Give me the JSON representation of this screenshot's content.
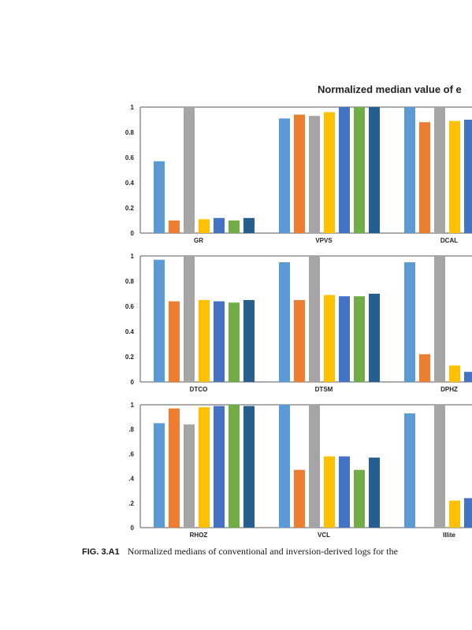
{
  "figure": {
    "title": "Normalized median value of e",
    "caption_number": "FIG. 3.A1",
    "caption_text": "Normalized medians of conventional and inversion-derived logs for the"
  },
  "colors": [
    "#5b9bd5",
    "#ed7d31",
    "#a5a5a5",
    "#ffc000",
    "#4472c4",
    "#70ad47",
    "#255e91"
  ],
  "chart_data": [
    {
      "type": "bar",
      "ylim": [
        0,
        1
      ],
      "yticks": [
        "0",
        "0.2",
        "0.4",
        "0.6",
        "0.8",
        "1"
      ],
      "categories": [
        "GR",
        "VPVS",
        "DCAL"
      ],
      "groups": [
        [
          0.57,
          0.1,
          1.0,
          0.11,
          0.12,
          0.1,
          0.12
        ],
        [
          0.91,
          0.94,
          0.93,
          0.96,
          1.0,
          1.0,
          1.0
        ],
        [
          1.0,
          0.88,
          1.0,
          0.89,
          0.9,
          null,
          null
        ]
      ]
    },
    {
      "type": "bar",
      "ylim": [
        0,
        1
      ],
      "yticks": [
        "0",
        "0.2",
        "0.4",
        "0.6",
        "0.8",
        "1"
      ],
      "categories": [
        "DTCO",
        "DTSM",
        "DPHZ"
      ],
      "groups": [
        [
          0.97,
          0.64,
          1.0,
          0.65,
          0.64,
          0.63,
          0.65
        ],
        [
          0.95,
          0.65,
          1.0,
          0.69,
          0.68,
          0.68,
          0.7
        ],
        [
          0.95,
          0.22,
          1.0,
          0.13,
          0.08,
          null,
          null
        ]
      ]
    },
    {
      "type": "bar",
      "ylim": [
        0,
        1
      ],
      "yticks": [
        "0",
        ".2",
        ".4",
        ".6",
        ".8",
        "1"
      ],
      "categories": [
        "RHOZ",
        "VCL",
        "Illite"
      ],
      "groups": [
        [
          0.85,
          0.97,
          0.84,
          0.98,
          0.99,
          1.0,
          0.99
        ],
        [
          1.0,
          0.47,
          1.0,
          0.58,
          0.58,
          0.47,
          0.57
        ],
        [
          0.93,
          null,
          1.0,
          0.22,
          0.24,
          null,
          null
        ]
      ]
    }
  ]
}
